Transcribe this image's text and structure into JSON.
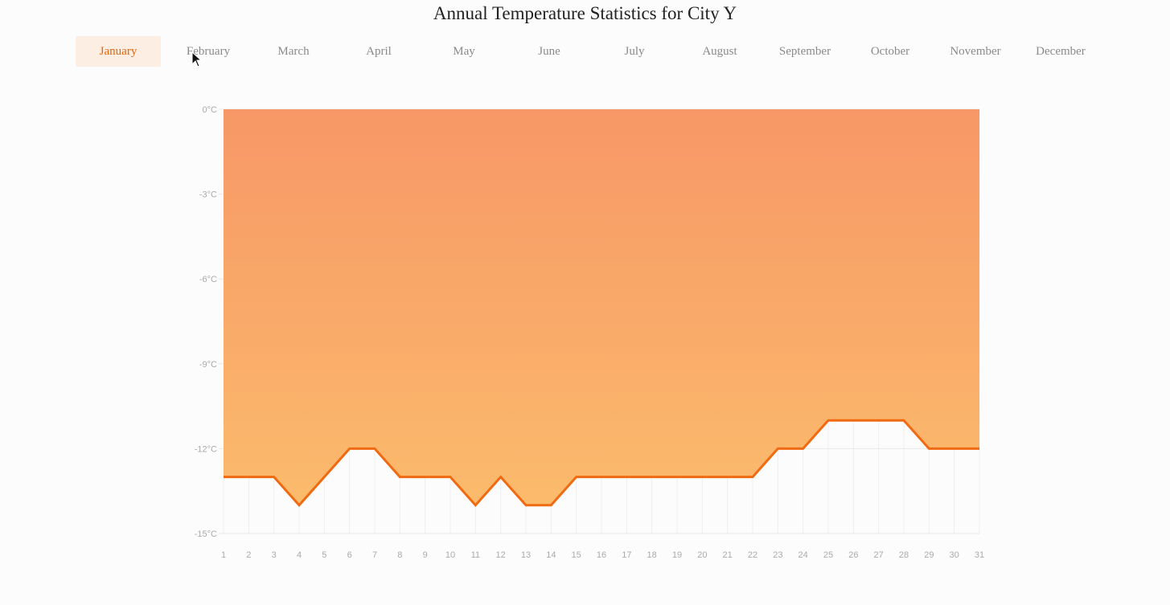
{
  "title": "Annual Temperature Statistics for City Y",
  "months": [
    "January",
    "February",
    "March",
    "April",
    "May",
    "June",
    "July",
    "August",
    "September",
    "October",
    "November",
    "December"
  ],
  "active_month_index": 0,
  "colors": {
    "accent": "#e8650a",
    "line": "#f06a12",
    "fill_top": "#f79767",
    "fill_bottom": "#fbbb6c",
    "tab_active_bg": "#fdeee3"
  },
  "chart_data": {
    "type": "area",
    "title": "",
    "xlabel": "",
    "ylabel": "",
    "x": [
      1,
      2,
      3,
      4,
      5,
      6,
      7,
      8,
      9,
      10,
      11,
      12,
      13,
      14,
      15,
      16,
      17,
      18,
      19,
      20,
      21,
      22,
      23,
      24,
      25,
      26,
      27,
      28,
      29,
      30,
      31
    ],
    "series": [
      {
        "values": [
          -13,
          -13,
          -13,
          -14,
          -13,
          -12,
          -12,
          -13,
          -13,
          -13,
          -14,
          -13,
          -14,
          -14,
          -13,
          -13,
          -13,
          -13,
          -13,
          -13,
          -13,
          -13,
          -12,
          -12,
          -11,
          -11,
          -11,
          -11,
          -12,
          -12,
          -12
        ]
      }
    ],
    "ylim": [
      -15,
      0
    ],
    "yticks": [
      0,
      -3,
      -6,
      -9,
      -12,
      -15
    ],
    "ytick_labels": [
      "0°C",
      "-3°C",
      "-6°C",
      "-9°C",
      "-12°C",
      "-15°C"
    ],
    "grid": true,
    "fill": "from line up to 0°C"
  }
}
